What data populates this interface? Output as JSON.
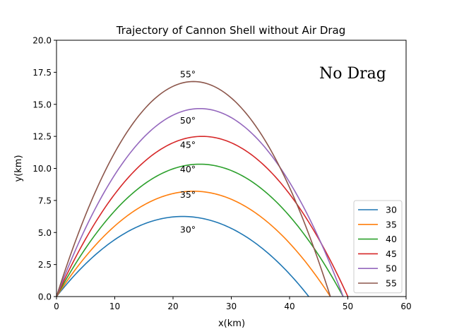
{
  "chart_data": {
    "type": "line",
    "title": "Trajectory of Cannon Shell without Air Drag",
    "xlabel": "x(km)",
    "ylabel": "y(km)",
    "xlim": [
      0,
      60
    ],
    "ylim": [
      0,
      20
    ],
    "xticks": [
      "0",
      "10",
      "20",
      "30",
      "40",
      "50",
      "60"
    ],
    "yticks": [
      "0.0",
      "2.5",
      "5.0",
      "7.5",
      "10.0",
      "12.5",
      "15.0",
      "17.5",
      "20.0"
    ],
    "grid": false,
    "legend_position": "lower-right",
    "annotation": "No Drag",
    "series": [
      {
        "name": "30",
        "angle_label": "30°",
        "color": "#1f77b4",
        "range": 43.3,
        "apex_x": 21.65,
        "peak": 6.25
      },
      {
        "name": "35",
        "angle_label": "35°",
        "color": "#ff7f0e",
        "range": 47.0,
        "apex_x": 23.5,
        "peak": 8.22
      },
      {
        "name": "40",
        "angle_label": "40°",
        "color": "#2ca02c",
        "range": 49.2,
        "apex_x": 24.6,
        "peak": 10.33
      },
      {
        "name": "45",
        "angle_label": "45°",
        "color": "#d62728",
        "range": 50.0,
        "apex_x": 25.0,
        "peak": 12.5
      },
      {
        "name": "50",
        "angle_label": "50°",
        "color": "#9467bd",
        "range": 49.2,
        "apex_x": 24.6,
        "peak": 14.67
      },
      {
        "name": "55",
        "angle_label": "55°",
        "color": "#8c564b",
        "range": 47.0,
        "apex_x": 23.5,
        "peak": 16.78
      }
    ],
    "angle_label_positions": [
      {
        "x": 21.2,
        "y": 5.0
      },
      {
        "x": 21.2,
        "y": 7.7
      },
      {
        "x": 21.2,
        "y": 9.7
      },
      {
        "x": 21.2,
        "y": 11.6
      },
      {
        "x": 21.2,
        "y": 13.5
      },
      {
        "x": 21.2,
        "y": 17.1
      }
    ]
  }
}
